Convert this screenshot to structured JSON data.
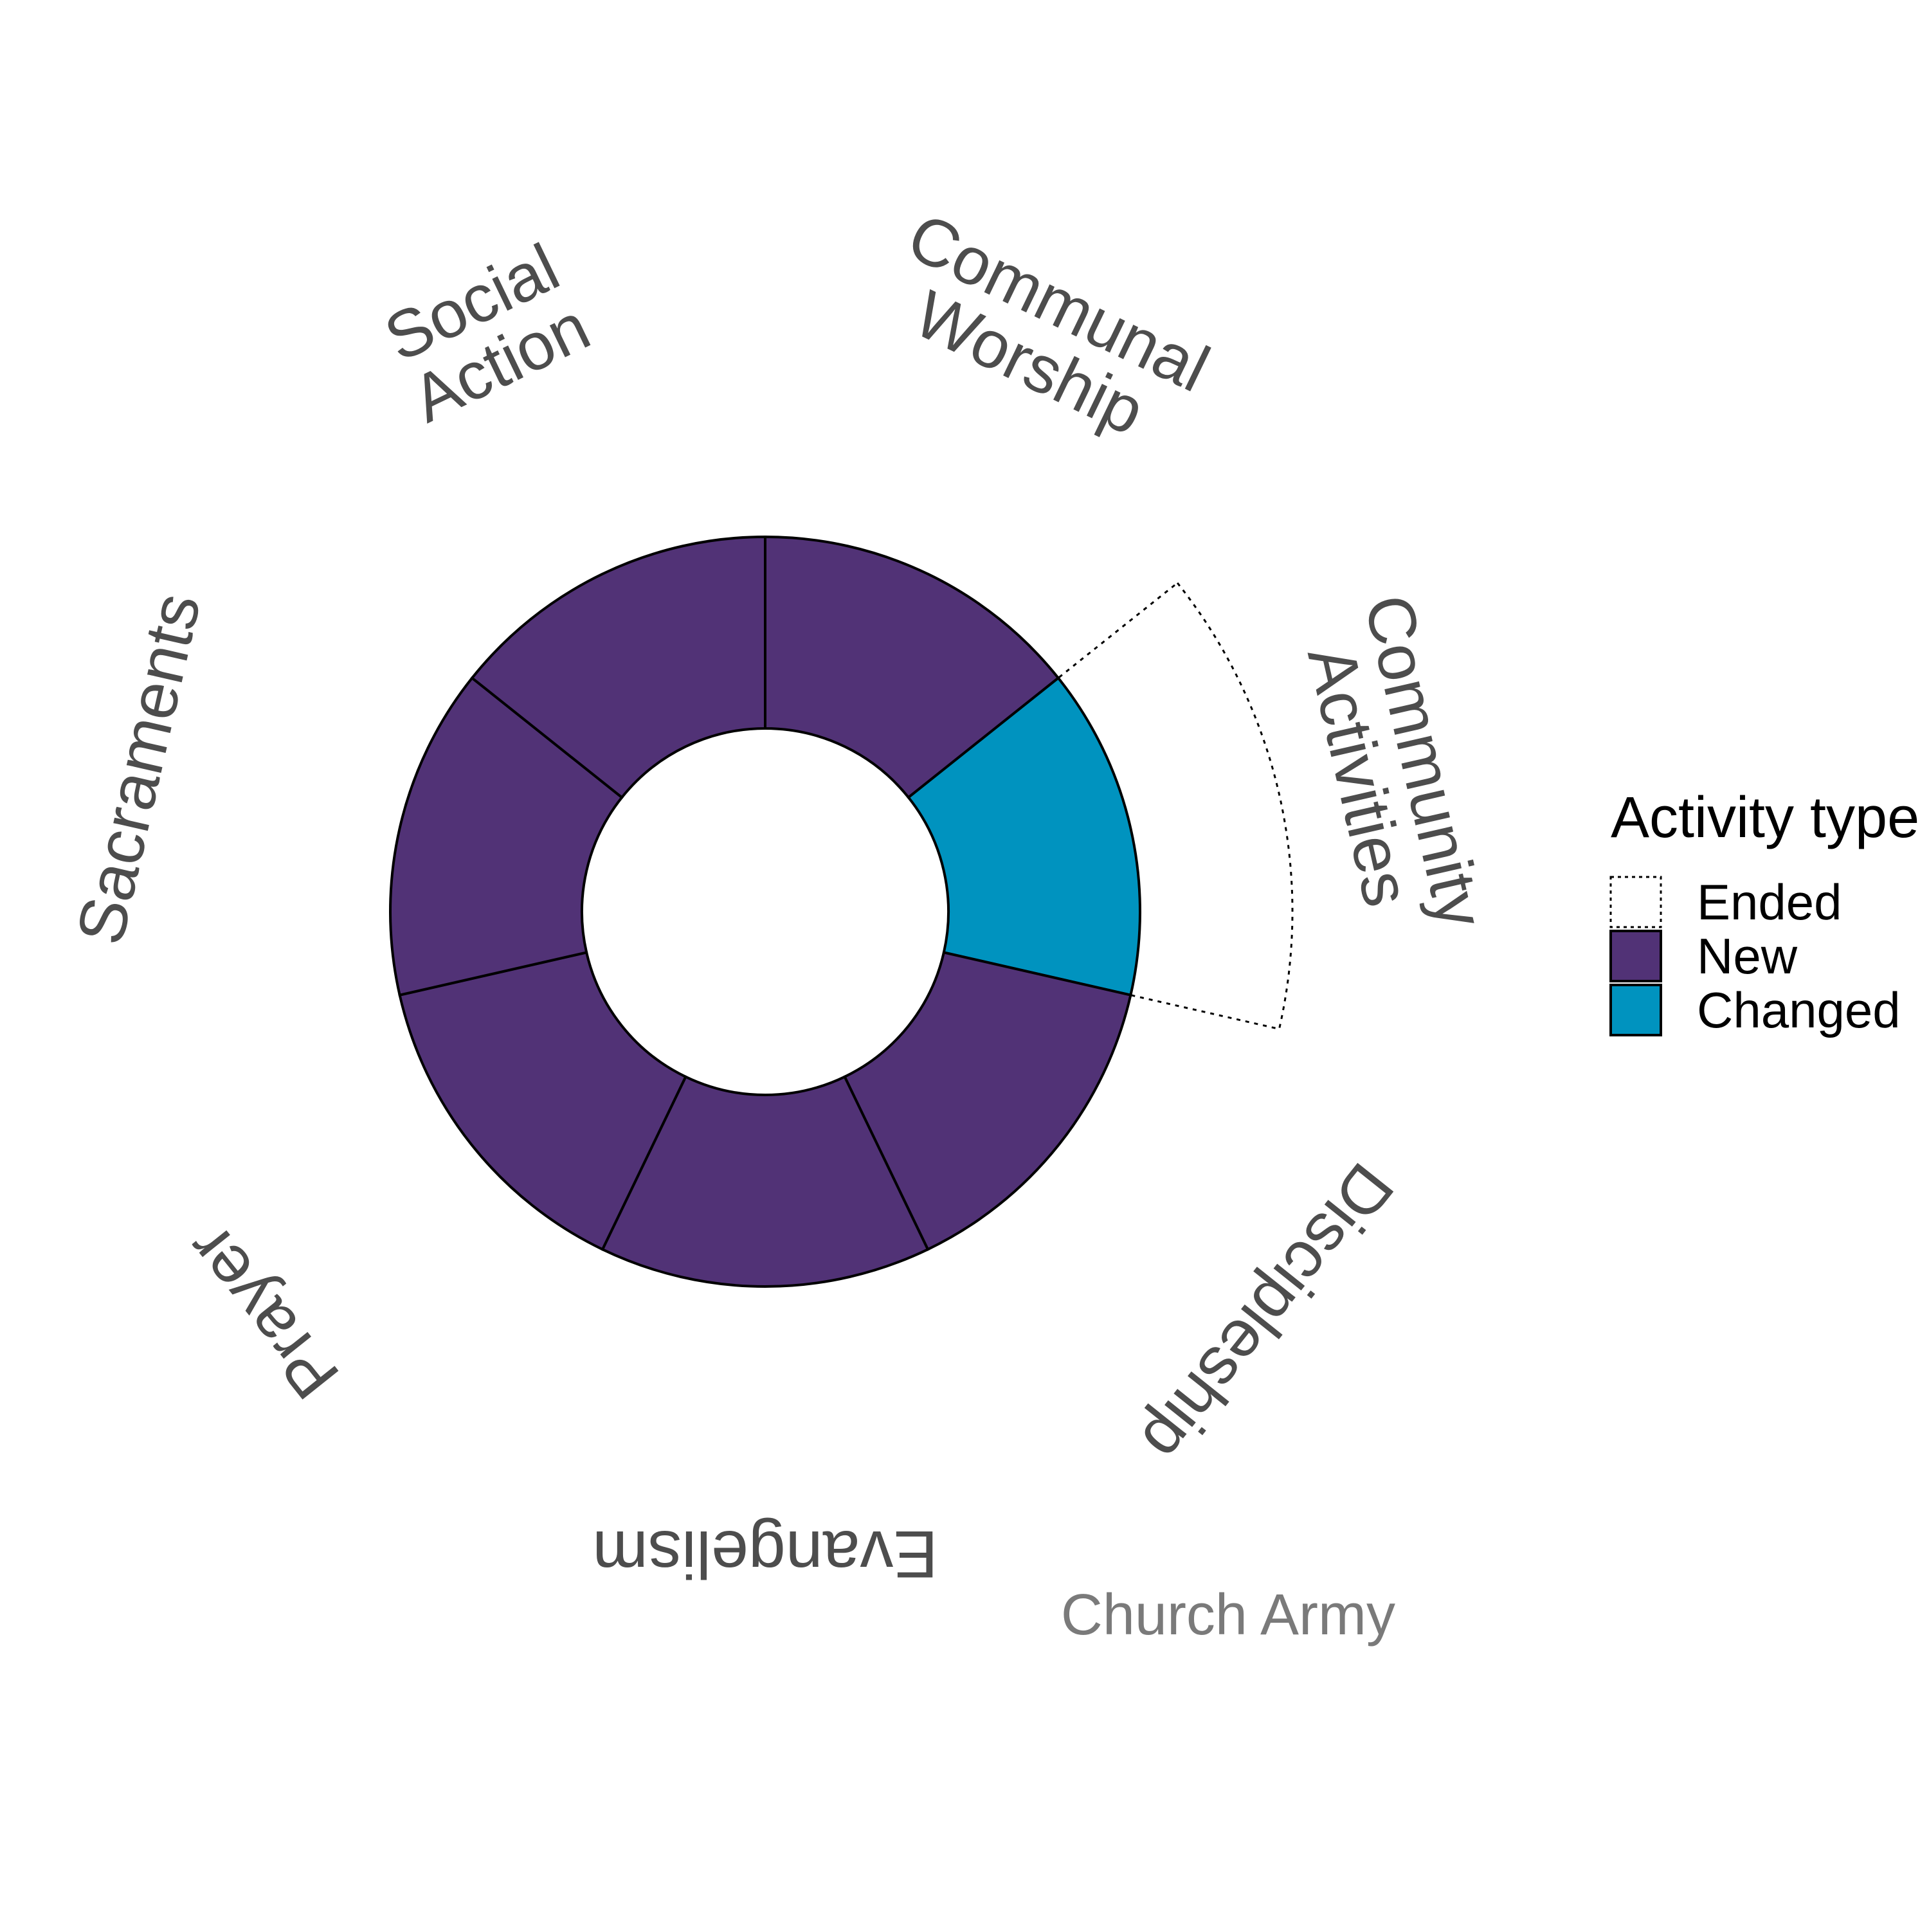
{
  "chart_data": {
    "type": "pie",
    "variant": "donut",
    "categories": [
      "Communal Worship",
      "Community Activities",
      "Discipleship",
      "Evangelism",
      "Prayer",
      "Sacraments",
      "Social Action"
    ],
    "category_labels": [
      [
        "Communal",
        "Worship"
      ],
      [
        "Community",
        "Activities"
      ],
      [
        "Discipleship"
      ],
      [
        "Evangelism"
      ],
      [
        "Prayer"
      ],
      [
        "Sacraments"
      ],
      [
        "Social",
        "Action"
      ]
    ],
    "series": [
      {
        "name": "Ended",
        "values": [
          0,
          1,
          0,
          0,
          0,
          0,
          0
        ]
      },
      {
        "name": "New",
        "values": [
          1,
          0,
          1,
          1,
          1,
          1,
          1
        ]
      },
      {
        "name": "Changed",
        "values": [
          0,
          1,
          0,
          0,
          0,
          0,
          0
        ]
      }
    ],
    "legend": {
      "title": "Activity type",
      "position": "right",
      "entries": [
        {
          "label": "Ended",
          "color": "#ffffff",
          "style": "dotted-outline"
        },
        {
          "label": "New",
          "color": "#513276"
        },
        {
          "label": "Changed",
          "color": "#0093bf"
        }
      ]
    },
    "caption": "Church Army",
    "colors": {
      "new": "#513276",
      "changed": "#0093bf",
      "ended": "#ffffff",
      "label_text": "#4d4d4d",
      "caption_text": "#7a7a7a"
    }
  }
}
